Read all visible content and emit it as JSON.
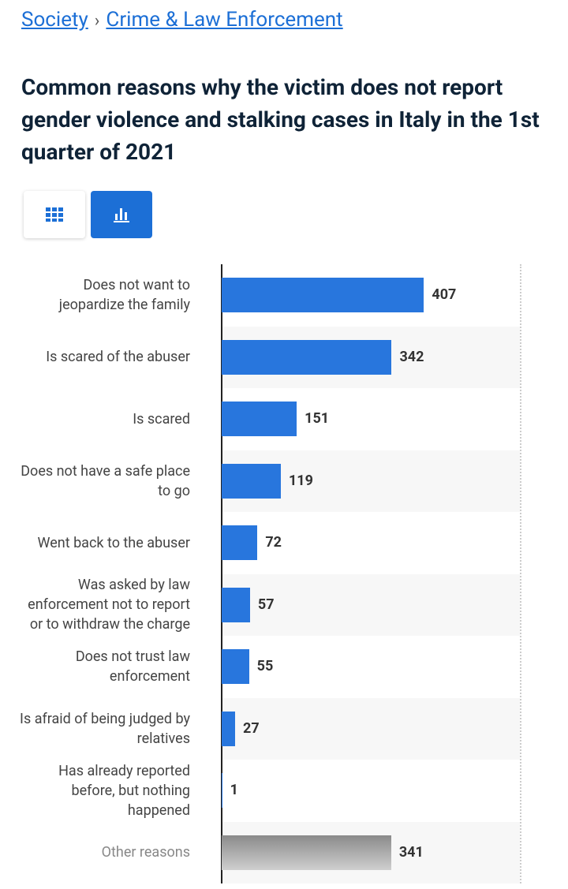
{
  "breadcrumb": {
    "items": [
      "Society",
      "Crime & Law Enforcement"
    ],
    "separator": "›"
  },
  "chart_data": {
    "type": "bar",
    "orientation": "horizontal",
    "title": "Common reasons why the victim does not report gender violence and stalking cases in Italy in the 1st quarter of 2021",
    "categories": [
      "Does not want to jeopardize the family",
      "Is scared of the abuser",
      "Is scared",
      "Does not have a safe place to go",
      "Went back to the abuser",
      "Was asked by law enforcement not to report or to withdraw the charge",
      "Does not trust law enforcement",
      "Is afraid of being judged by relatives",
      "Has already reported before, but nothing happened",
      "Other reasons"
    ],
    "values": [
      407,
      342,
      151,
      119,
      72,
      57,
      55,
      27,
      1,
      341
    ],
    "colors": [
      "#2876dd",
      "#2876dd",
      "#2876dd",
      "#2876dd",
      "#2876dd",
      "#2876dd",
      "#2876dd",
      "#2876dd",
      "#2876dd",
      "#8a8a8a"
    ],
    "xlim": [
      0,
      600
    ],
    "grid": true
  }
}
